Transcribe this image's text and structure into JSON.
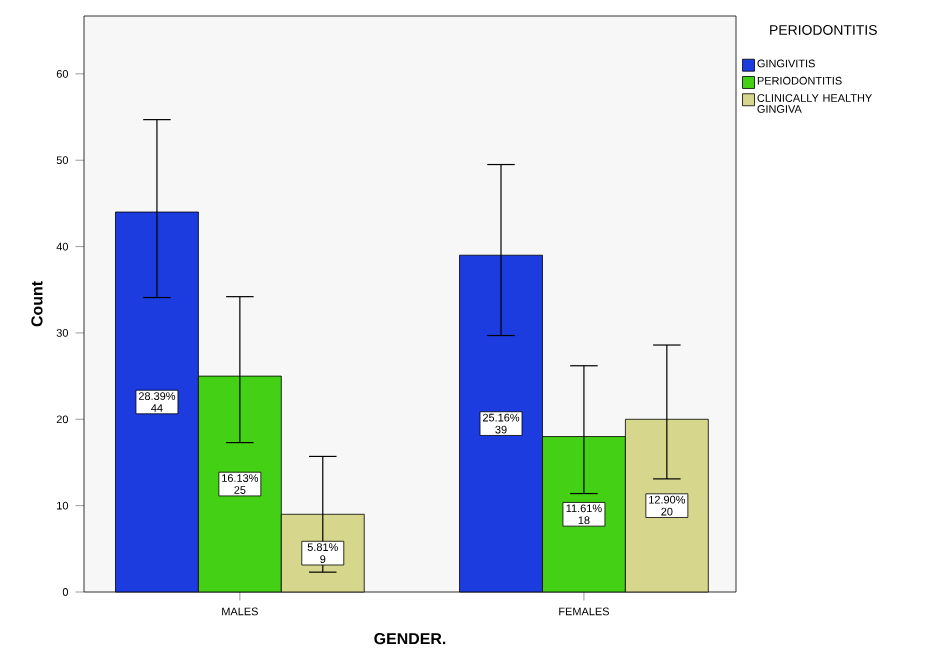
{
  "chart_data": {
    "type": "bar",
    "xlabel": "GENDER.",
    "ylabel": "Count",
    "legend_title": "PERIODONTITIS",
    "legend": "right",
    "categories": [
      "MALES",
      "FEMALES"
    ],
    "series": [
      {
        "name": "GINGIVITIS",
        "color": "#1c3ce0",
        "values": [
          44,
          39
        ],
        "errors": [
          [
            34.1,
            54.7
          ],
          [
            29.7,
            49.5
          ]
        ],
        "value_labels": [
          "28.39% 44",
          "25.16% 39"
        ]
      },
      {
        "name": "PERIODONTITIS",
        "color": "#44d014",
        "values": [
          25,
          18
        ],
        "errors": [
          [
            17.3,
            34.2
          ],
          [
            11.4,
            26.2
          ]
        ],
        "value_labels": [
          "16.13% 25",
          "11.61% 18"
        ]
      },
      {
        "name": "CLINICALLY HEALTHY GINGIVA",
        "color": "#d6d68c",
        "values": [
          9,
          20
        ],
        "errors": [
          [
            2.3,
            15.7
          ],
          [
            13.1,
            28.6
          ]
        ],
        "value_labels": [
          "5.81% 9",
          "12.90% 20"
        ]
      }
    ],
    "ylim": [
      0,
      66.7
    ],
    "yticks": [
      0,
      10,
      20,
      30,
      40,
      50,
      60
    ]
  }
}
